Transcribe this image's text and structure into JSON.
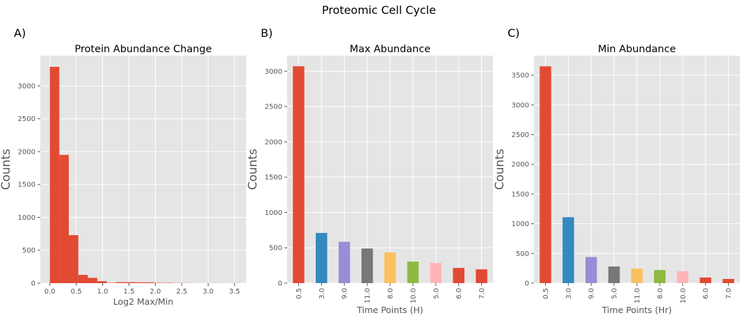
{
  "figure": {
    "title": "Proteomic Cell Cycle",
    "panel_labels": [
      "A)",
      "B)",
      "C)"
    ]
  },
  "style": {
    "panel_background": "#E5E5E5",
    "grid_color": "#FFFFFF",
    "tick_color": "#555555",
    "palette": [
      "#E24A33",
      "#348ABD",
      "#988ED5",
      "#777777",
      "#FBC15E",
      "#8EBA42",
      "#FFB5B8"
    ]
  },
  "chart_data": [
    {
      "type": "bar",
      "subtype": "histogram",
      "title": "Protein Abundance Change",
      "xlabel": "Log2 Max/Min",
      "ylabel": "Counts",
      "bin_edges": [
        0.0,
        0.18,
        0.36,
        0.54,
        0.72,
        0.9,
        1.08,
        1.26,
        1.44,
        1.62,
        1.8,
        1.98,
        2.16,
        2.34,
        2.52,
        2.7,
        2.88,
        3.06,
        3.24,
        3.42,
        3.6
      ],
      "values": [
        3290,
        1950,
        730,
        125,
        80,
        30,
        5,
        15,
        15,
        12,
        12,
        5,
        5,
        3,
        2,
        1,
        1,
        2,
        1,
        2
      ],
      "xlim": [
        -0.18,
        3.72
      ],
      "ylim": [
        0,
        3460
      ],
      "xticks": [
        "0.0",
        "0.5",
        "1.0",
        "1.5",
        "2.0",
        "2.5",
        "3.0",
        "3.5"
      ],
      "yticks": [
        "0",
        "500",
        "1000",
        "1500",
        "2000",
        "2500",
        "3000"
      ],
      "grid": true,
      "color": "#E24A33"
    },
    {
      "type": "bar",
      "title": "Max Abundance",
      "xlabel": "Time Points (H)",
      "ylabel": "Counts",
      "categories": [
        "0.5",
        "3.0",
        "9.0",
        "11.0",
        "8.0",
        "10.0",
        "5.0",
        "6.0",
        "7.0"
      ],
      "values": [
        3070,
        710,
        585,
        490,
        435,
        305,
        285,
        215,
        195
      ],
      "ylim": [
        0,
        3220
      ],
      "yticks": [
        "0",
        "500",
        "1000",
        "1500",
        "2000",
        "2500",
        "3000"
      ],
      "grid": true,
      "colors": [
        "#E24A33",
        "#348ABD",
        "#988ED5",
        "#777777",
        "#FBC15E",
        "#8EBA42",
        "#FFB5B8",
        "#E24A33",
        "#E24A33"
      ]
    },
    {
      "type": "bar",
      "title": "Min Abundance",
      "xlabel": "Time Points (Hr)",
      "ylabel": "Counts",
      "categories": [
        "0.5",
        "3.0",
        "9.0",
        "5.0",
        "11.0",
        "8.0",
        "10.0",
        "6.0",
        "7.0"
      ],
      "values": [
        3650,
        1110,
        440,
        280,
        245,
        220,
        200,
        95,
        70
      ],
      "ylim": [
        0,
        3830
      ],
      "yticks": [
        "0",
        "500",
        "1000",
        "1500",
        "2000",
        "2500",
        "3000",
        "3500"
      ],
      "grid": true,
      "colors": [
        "#E24A33",
        "#348ABD",
        "#988ED5",
        "#777777",
        "#FBC15E",
        "#8EBA42",
        "#FFB5B8",
        "#E24A33",
        "#E24A33"
      ]
    }
  ]
}
